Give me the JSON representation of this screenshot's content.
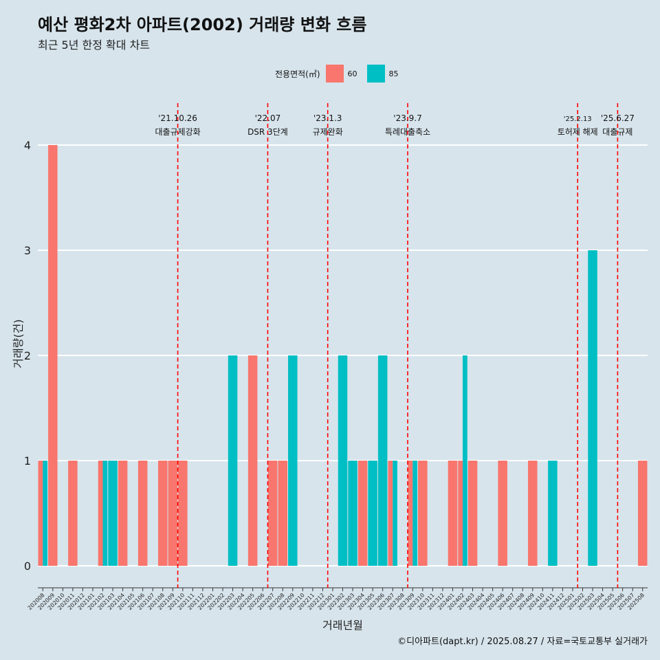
{
  "colors": {
    "bg": "#d7e4ec",
    "c60": "#f8766d",
    "c85": "#00bfc4",
    "grid": "#ffffff",
    "event": "#ff0000"
  },
  "chart_data": {
    "type": "bar",
    "title": "예산 평화2차 아파트(2002) 거래량 변화 흐름",
    "subtitle": "최근 5년 한정 확대 차트",
    "xlabel": "거래년월",
    "ylabel": "거래량(건)",
    "ylim": [
      0,
      4
    ],
    "yticks": [
      "0",
      "1",
      "2",
      "3",
      "4"
    ],
    "legend": {
      "title": "전용면적(㎡)",
      "position": "top",
      "items": [
        {
          "label": "60",
          "color": "#f8766d"
        },
        {
          "label": "85",
          "color": "#00bfc4"
        }
      ]
    },
    "categories": [
      "202008",
      "202009",
      "202010",
      "202011",
      "202012",
      "202101",
      "202102",
      "202103",
      "202104",
      "202105",
      "202106",
      "202107",
      "202108",
      "202109",
      "202110",
      "202111",
      "202112",
      "202201",
      "202202",
      "202203",
      "202204",
      "202205",
      "202206",
      "202207",
      "202208",
      "202209",
      "202210",
      "202211",
      "202212",
      "202301",
      "202302",
      "202303",
      "202304",
      "202305",
      "202306",
      "202307",
      "202308",
      "202309",
      "202310",
      "202311",
      "202312",
      "202401",
      "202402",
      "202403",
      "202404",
      "202405",
      "202406",
      "202407",
      "202408",
      "202409",
      "202410",
      "202411",
      "202412",
      "202501",
      "202502",
      "202503",
      "202504",
      "202505",
      "202506",
      "202507",
      "202508"
    ],
    "series": [
      {
        "name": "60",
        "color": "#f8766d",
        "values": [
          1,
          4,
          0,
          1,
          0,
          0,
          1,
          0,
          1,
          0,
          1,
          0,
          1,
          1,
          1,
          0,
          0,
          0,
          0,
          0,
          0,
          2,
          0,
          1,
          1,
          0,
          0,
          0,
          0,
          0,
          0,
          0,
          1,
          0,
          0,
          1,
          0,
          1,
          1,
          0,
          0,
          1,
          1,
          1,
          0,
          0,
          1,
          0,
          0,
          1,
          0,
          0,
          0,
          0,
          0,
          0,
          0,
          0,
          0,
          0,
          1
        ]
      },
      {
        "name": "85",
        "color": "#00bfc4",
        "values": [
          1,
          0,
          0,
          0,
          0,
          0,
          1,
          1,
          0,
          0,
          0,
          0,
          0,
          0,
          0,
          0,
          0,
          0,
          0,
          2,
          0,
          0,
          0,
          0,
          0,
          2,
          0,
          0,
          0,
          0,
          2,
          1,
          0,
          1,
          2,
          1,
          0,
          1,
          0,
          0,
          0,
          0,
          2,
          0,
          0,
          0,
          0,
          0,
          0,
          0,
          0,
          1,
          0,
          0,
          0,
          3,
          0,
          0,
          0,
          0,
          0
        ]
      }
    ],
    "events": [
      {
        "date": "'21.10.26",
        "label": "대출규제강화",
        "month": "202110"
      },
      {
        "date": "'22.07",
        "label": "DSR 3단계",
        "month": "202207"
      },
      {
        "date": "'23.1.3",
        "label": "규제완화",
        "month": "202301"
      },
      {
        "date": "'23.9.7",
        "label": "특례대출축소",
        "month": "202309"
      },
      {
        "date": "'25.2.13",
        "label": "토허제 해제",
        "month": "202502"
      },
      {
        "date": "'25.6.27",
        "label": "대출규제",
        "month": "202506"
      }
    ]
  },
  "caption": "©디아파트(dapt.kr) / 2025.08.27 / 자료=국토교통부 실거래가"
}
